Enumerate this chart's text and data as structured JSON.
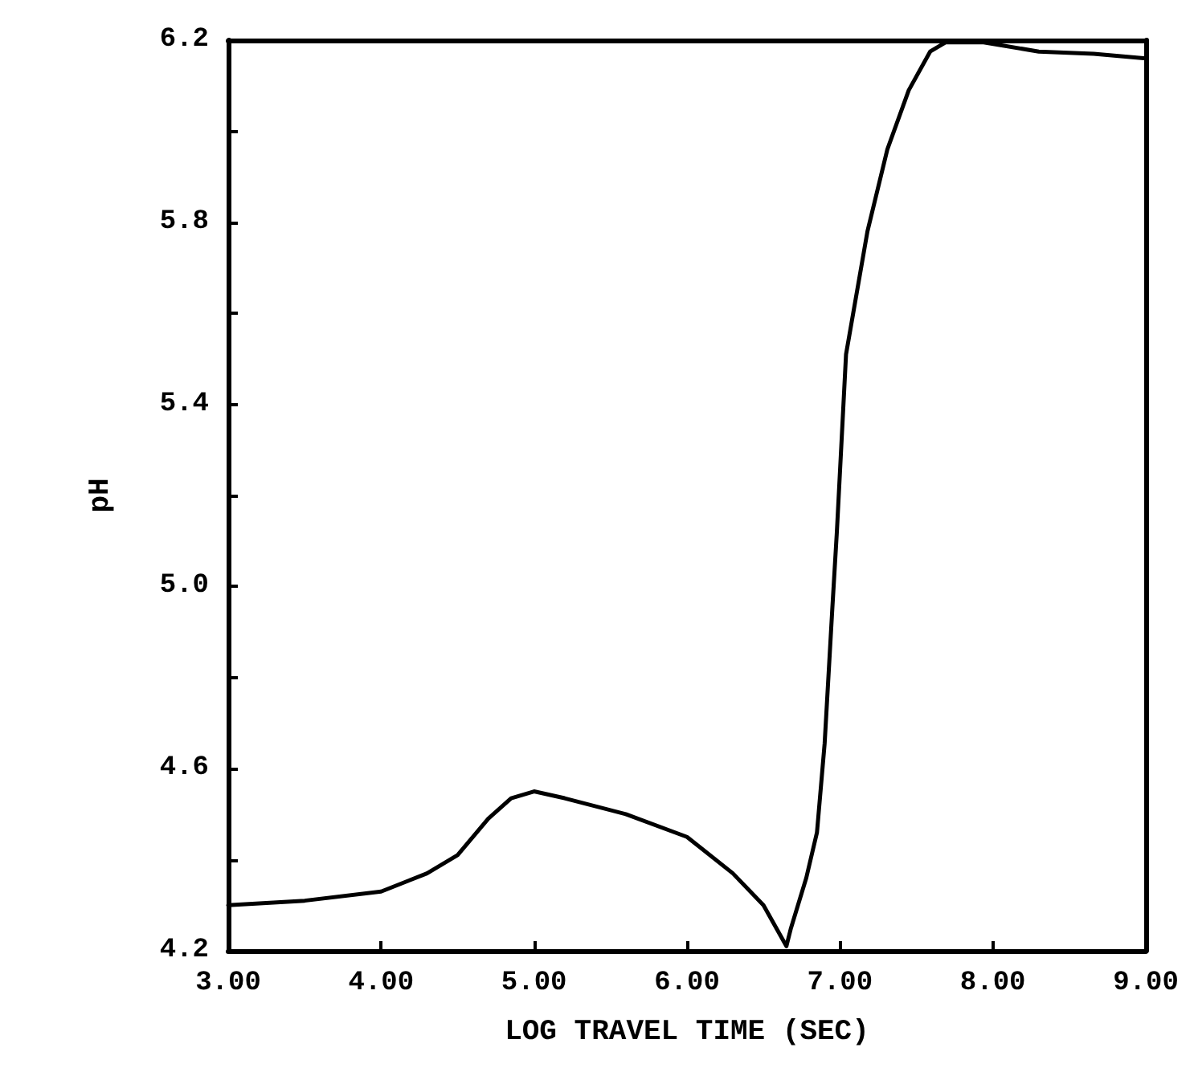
{
  "chart_data": {
    "type": "line",
    "xlabel": "LOG TRAVEL TIME (SEC)",
    "ylabel": "pH",
    "x": [
      3.0,
      3.5,
      4.0,
      4.3,
      4.5,
      4.7,
      4.85,
      5.0,
      5.2,
      5.6,
      6.0,
      6.3,
      6.5,
      6.65,
      6.68,
      6.78,
      6.85,
      6.9,
      6.95,
      6.98,
      7.04,
      7.18,
      7.31,
      7.45,
      7.59,
      7.69,
      7.94,
      8.3,
      8.66,
      9.0
    ],
    "series": [
      {
        "color": "#000000",
        "values": [
          4.3,
          4.31,
          4.33,
          4.37,
          4.41,
          4.49,
          4.535,
          4.55,
          4.535,
          4.5,
          4.45,
          4.37,
          4.3,
          4.21,
          4.25,
          4.36,
          4.46,
          4.655,
          4.95,
          5.12,
          5.51,
          5.78,
          5.96,
          6.09,
          6.175,
          6.195,
          6.195,
          6.175,
          6.17,
          6.16
        ]
      }
    ],
    "xlim": [
      3.0,
      9.0
    ],
    "xticks": [
      {
        "value": 3,
        "label": "3.00"
      },
      {
        "value": 4,
        "label": "4.00"
      },
      {
        "value": 5,
        "label": "5.00"
      },
      {
        "value": 6,
        "label": "6.00"
      },
      {
        "value": 7,
        "label": "7.00"
      },
      {
        "value": 8,
        "label": "8.00"
      },
      {
        "value": 9,
        "label": "9.00"
      }
    ],
    "ylim": [
      4.2,
      6.2
    ],
    "yticks": [
      4.2,
      {
        "value": 4.4,
        "label": null
      },
      4.6,
      {
        "value": 4.8,
        "label": null
      },
      {
        "value": 5.0,
        "label": "5.0"
      },
      {
        "value": 5.2,
        "label": null
      },
      5.4,
      {
        "value": 5.6,
        "label": null
      },
      5.8,
      {
        "value": 6.0,
        "label": null
      },
      6.2
    ],
    "marker": "none",
    "line_style": "solid"
  }
}
